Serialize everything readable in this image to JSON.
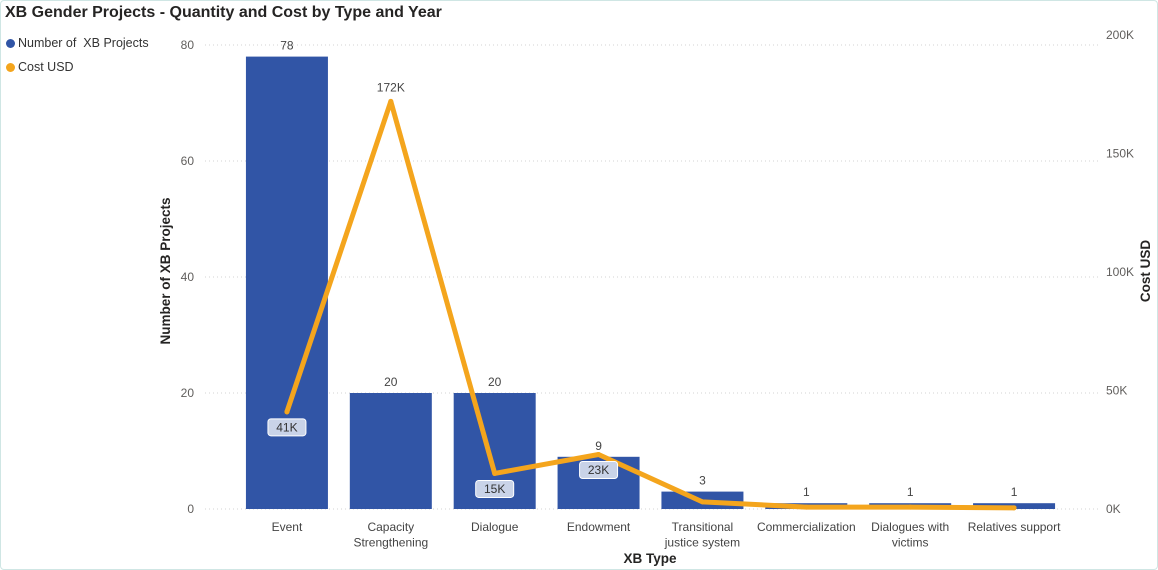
{
  "title": "XB Gender Projects - Quantity and Cost by Type and Year",
  "legend": [
    {
      "label": "Number of  XB Projects",
      "color": "#3155a6"
    },
    {
      "label": "Cost USD",
      "color": "#f4a51d"
    }
  ],
  "colors": {
    "bar": "#3155a6",
    "line": "#f4a51d",
    "grid": "#d3d3d3",
    "label_box": "#c9d3e8"
  },
  "chart_data": {
    "type": "bar",
    "categories": [
      "Event",
      "Capacity Strengthening",
      "Dialogue",
      "Endowment",
      "Transitional justice system",
      "Commercialization",
      "Dialogues with victims",
      "Relatives support"
    ],
    "series": [
      {
        "name": "Number of  XB Projects",
        "type": "bar",
        "axis": "left",
        "values": [
          78,
          20,
          20,
          9,
          3,
          1,
          1,
          1
        ],
        "data_labels": [
          "78",
          "20",
          "20",
          "9",
          "3",
          "1",
          "1",
          "1"
        ]
      },
      {
        "name": "Cost USD",
        "type": "line",
        "axis": "right",
        "values": [
          41000,
          172000,
          15000,
          23000,
          3000,
          800,
          800,
          500
        ],
        "data_labels": [
          "41K",
          "172K",
          "15K",
          "23K",
          "",
          "",
          "",
          ""
        ]
      }
    ],
    "xlabel": "XB Type",
    "ylabel": "Number of XB Projects",
    "y2label": "Cost USD",
    "ylim": [
      0,
      80
    ],
    "y2lim": [
      0,
      200000
    ],
    "yticks": [
      0,
      20,
      40,
      60,
      80
    ],
    "yticklabels": [
      "0",
      "20",
      "40",
      "60",
      "80"
    ],
    "y2ticks": [
      0,
      50000,
      100000,
      150000,
      200000
    ],
    "y2ticklabels": [
      "0K",
      "50K",
      "100K",
      "150K",
      "200K"
    ],
    "grid": true,
    "legend_position": "top-left"
  }
}
